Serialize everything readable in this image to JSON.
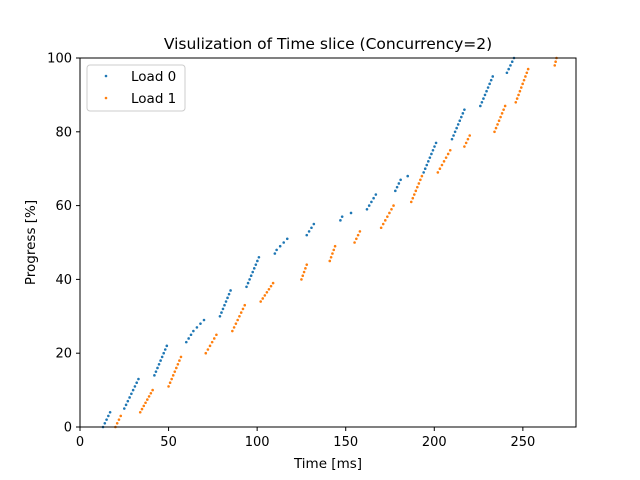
{
  "chart_data": {
    "type": "scatter",
    "title": "Visulization of Time slice (Concurrency=2)",
    "xlabel": "Time [ms]",
    "ylabel": "Progress [%]",
    "xlim": [
      0,
      280
    ],
    "ylim": [
      0,
      100
    ],
    "xticks": [
      0,
      50,
      100,
      150,
      200,
      250
    ],
    "yticks": [
      0,
      20,
      40,
      60,
      80,
      100
    ],
    "grid": false,
    "legend_position": "top-left",
    "series": [
      {
        "name": "Load 0",
        "color": "#1f77b4",
        "segments": [
          {
            "x0": 13,
            "y0": 0,
            "x1": 17,
            "y1": 4,
            "n": 5
          },
          {
            "x0": 25,
            "y0": 5,
            "x1": 33,
            "y1": 13,
            "n": 9
          },
          {
            "x0": 42,
            "y0": 14,
            "x1": 49,
            "y1": 22,
            "n": 9
          },
          {
            "x0": 60,
            "y0": 23,
            "x1": 64,
            "y1": 26,
            "n": 4
          },
          {
            "x0": 66,
            "y0": 27,
            "x1": 70,
            "y1": 29,
            "n": 3
          },
          {
            "x0": 79,
            "y0": 30,
            "x1": 85,
            "y1": 37,
            "n": 8
          },
          {
            "x0": 94,
            "y0": 38,
            "x1": 101,
            "y1": 46,
            "n": 9
          },
          {
            "x0": 110,
            "y0": 47,
            "x1": 111,
            "y1": 48,
            "n": 2
          },
          {
            "x0": 113,
            "y0": 49,
            "x1": 117,
            "y1": 51,
            "n": 3
          },
          {
            "x0": 128,
            "y0": 52,
            "x1": 132,
            "y1": 55,
            "n": 4
          },
          {
            "x0": 147,
            "y0": 56,
            "x1": 148,
            "y1": 57,
            "n": 2
          },
          {
            "x0": 153,
            "y0": 58,
            "x1": 153,
            "y1": 58,
            "n": 1
          },
          {
            "x0": 162,
            "y0": 59,
            "x1": 167,
            "y1": 63,
            "n": 5
          },
          {
            "x0": 178,
            "y0": 64,
            "x1": 181,
            "y1": 67,
            "n": 4
          },
          {
            "x0": 185,
            "y0": 68,
            "x1": 185,
            "y1": 68,
            "n": 1
          },
          {
            "x0": 194,
            "y0": 69,
            "x1": 201,
            "y1": 77,
            "n": 9
          },
          {
            "x0": 210,
            "y0": 78,
            "x1": 217,
            "y1": 86,
            "n": 9
          },
          {
            "x0": 226,
            "y0": 87,
            "x1": 233,
            "y1": 95,
            "n": 9
          },
          {
            "x0": 241,
            "y0": 96,
            "x1": 245,
            "y1": 100,
            "n": 5
          }
        ]
      },
      {
        "name": "Load 1",
        "color": "#ff7f0e",
        "segments": [
          {
            "x0": 20,
            "y0": 0,
            "x1": 23,
            "y1": 3,
            "n": 4
          },
          {
            "x0": 34,
            "y0": 4,
            "x1": 41,
            "y1": 10,
            "n": 8
          },
          {
            "x0": 50,
            "y0": 11,
            "x1": 57,
            "y1": 19,
            "n": 9
          },
          {
            "x0": 71,
            "y0": 20,
            "x1": 77,
            "y1": 25,
            "n": 6
          },
          {
            "x0": 86,
            "y0": 26,
            "x1": 93,
            "y1": 33,
            "n": 8
          },
          {
            "x0": 102,
            "y0": 34,
            "x1": 109,
            "y1": 39,
            "n": 7
          },
          {
            "x0": 125,
            "y0": 40,
            "x1": 128,
            "y1": 44,
            "n": 5
          },
          {
            "x0": 141,
            "y0": 45,
            "x1": 144,
            "y1": 49,
            "n": 5
          },
          {
            "x0": 155,
            "y0": 50,
            "x1": 158,
            "y1": 53,
            "n": 4
          },
          {
            "x0": 170,
            "y0": 54,
            "x1": 177,
            "y1": 60,
            "n": 7
          },
          {
            "x0": 187,
            "y0": 61,
            "x1": 193,
            "y1": 68,
            "n": 8
          },
          {
            "x0": 202,
            "y0": 69,
            "x1": 209,
            "y1": 75,
            "n": 7
          },
          {
            "x0": 217,
            "y0": 76,
            "x1": 220,
            "y1": 79,
            "n": 4
          },
          {
            "x0": 234,
            "y0": 80,
            "x1": 240,
            "y1": 87,
            "n": 8
          },
          {
            "x0": 246,
            "y0": 88,
            "x1": 253,
            "y1": 97,
            "n": 10
          },
          {
            "x0": 268,
            "y0": 98,
            "x1": 269,
            "y1": 100,
            "n": 3
          }
        ]
      }
    ]
  }
}
